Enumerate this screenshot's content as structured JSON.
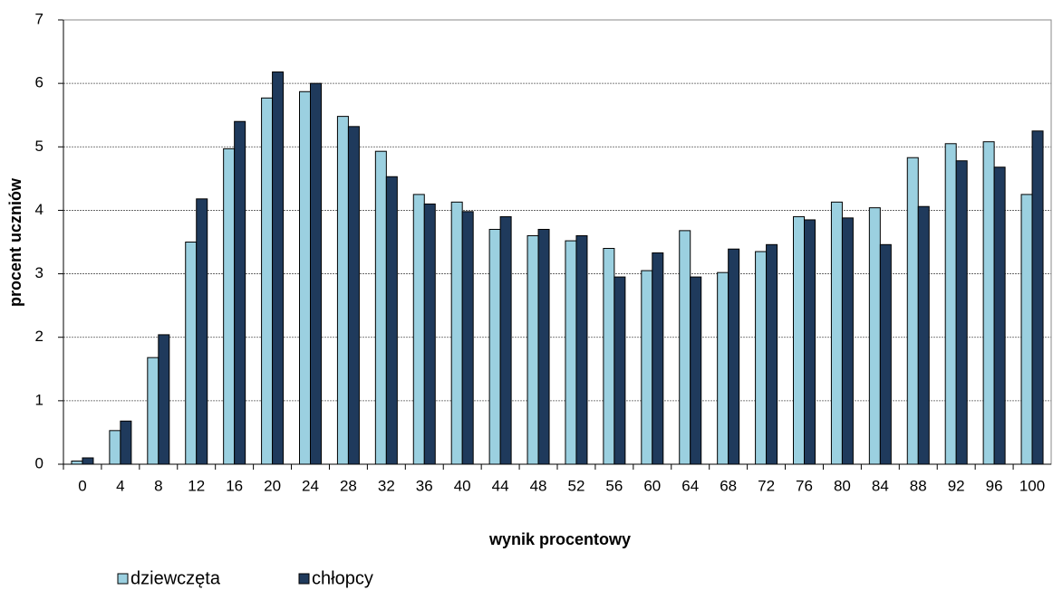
{
  "chart_data": {
    "type": "bar",
    "x_label": "wynik procentowy",
    "y_label": "procent uczniów",
    "categories": [
      "0",
      "4",
      "8",
      "12",
      "16",
      "20",
      "24",
      "28",
      "32",
      "36",
      "40",
      "44",
      "48",
      "52",
      "56",
      "60",
      "64",
      "68",
      "72",
      "76",
      "80",
      "84",
      "88",
      "92",
      "96",
      "100"
    ],
    "series": [
      {
        "name": "dziewczęta",
        "color": "#9bd0e0",
        "values": [
          0.05,
          0.53,
          1.68,
          3.5,
          4.97,
          5.77,
          5.87,
          5.48,
          4.93,
          4.25,
          4.13,
          3.7,
          3.6,
          3.52,
          3.4,
          3.05,
          3.68,
          3.02,
          3.35,
          3.9,
          4.13,
          4.04,
          4.83,
          5.05,
          5.08,
          4.25
        ]
      },
      {
        "name": "chłopcy",
        "color": "#1f3a5c",
        "values": [
          0.1,
          0.68,
          2.04,
          4.18,
          5.4,
          6.18,
          6.0,
          5.32,
          4.53,
          4.1,
          3.98,
          3.9,
          3.7,
          3.6,
          2.95,
          3.33,
          2.95,
          3.39,
          3.46,
          3.85,
          3.88,
          3.46,
          4.06,
          4.78,
          4.68,
          5.25
        ]
      }
    ],
    "ylim": [
      0,
      7
    ],
    "yticks": [
      0,
      1,
      2,
      3,
      4,
      5,
      6,
      7
    ],
    "grid": true,
    "legend": "bottom-left"
  }
}
